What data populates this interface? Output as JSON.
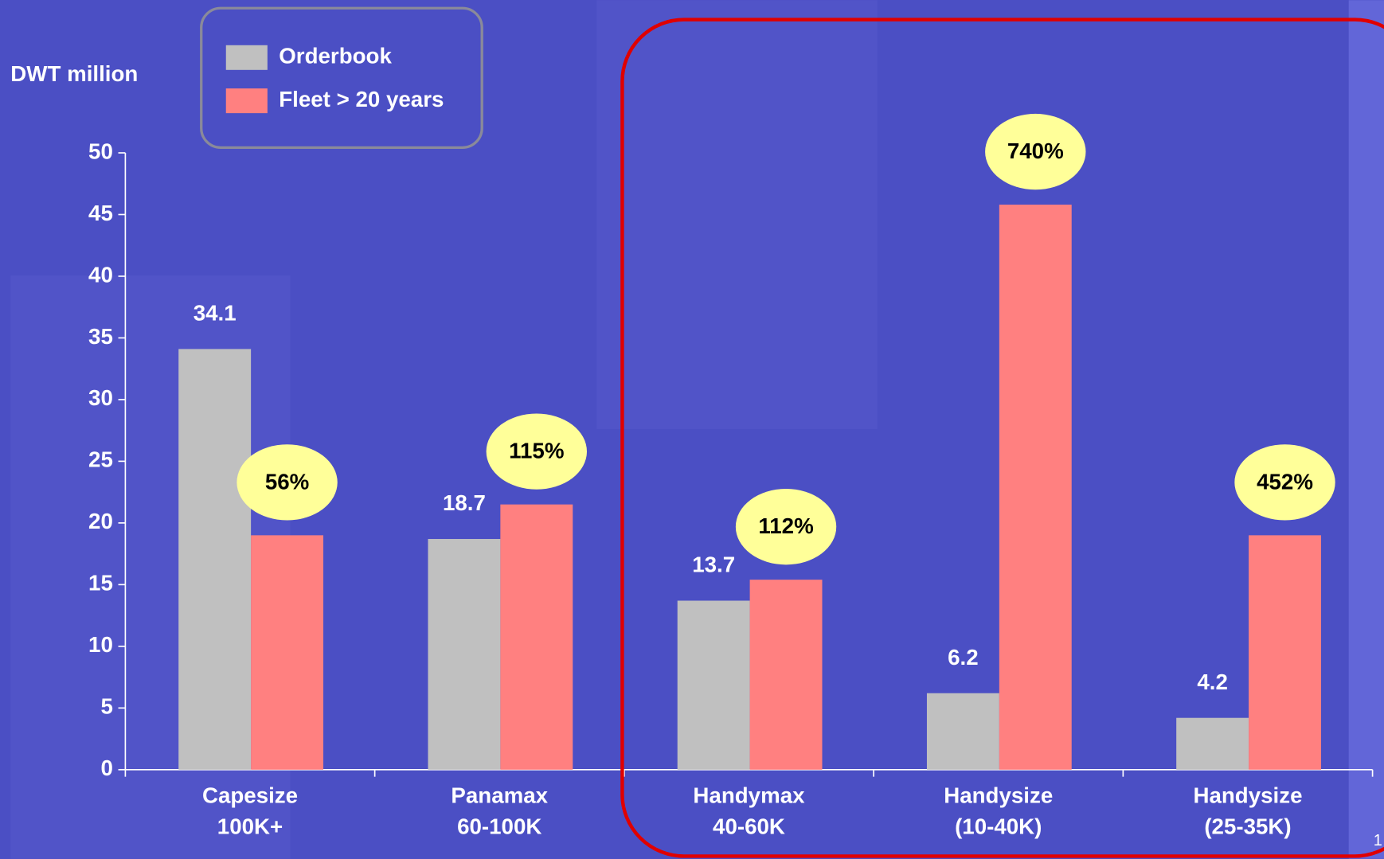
{
  "chart_data": {
    "type": "bar",
    "y_label": "DWT million",
    "categories": [
      [
        "Capesize",
        "100K+"
      ],
      [
        "Panamax",
        "60-100K"
      ],
      [
        "Handymax",
        "40-60K"
      ],
      [
        "Handysize",
        "(10-40K)"
      ],
      [
        "Handysize",
        "(25-35K)"
      ]
    ],
    "series": [
      {
        "name": "Orderbook",
        "color": "#c0c0c0",
        "values": [
          34.1,
          18.7,
          13.7,
          6.2,
          4.2
        ]
      },
      {
        "name": "Fleet > 20 years",
        "color": "#ff8080",
        "values": [
          19.0,
          21.5,
          15.4,
          45.8,
          19.0
        ]
      }
    ],
    "annotations": [
      "56%",
      "115%",
      "112%",
      "740%",
      "452%"
    ],
    "ylim": [
      0,
      50
    ],
    "yticks": [
      0,
      5,
      10,
      15,
      20,
      25,
      30,
      35,
      40,
      45,
      50
    ],
    "page_number": "1"
  }
}
